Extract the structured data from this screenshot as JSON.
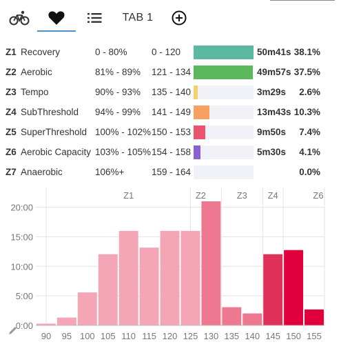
{
  "tabs": [
    {
      "name": "cycling",
      "icon": "bicycle-icon"
    },
    {
      "name": "heart-rate",
      "icon": "heart-icon",
      "active": true
    },
    {
      "name": "list",
      "icon": "list-icon"
    },
    {
      "name": "tab1",
      "label": "TAB 1"
    },
    {
      "name": "add",
      "icon": "add-circle-icon"
    }
  ],
  "zones": [
    {
      "id": "Z1",
      "name": "Recovery",
      "pct": "0 - 80%",
      "bpm": "0 - 120",
      "fraction": 1.0,
      "color": "#5cb8a0",
      "time": "50m41s",
      "share": "38.1%"
    },
    {
      "id": "Z2",
      "name": "Aerobic",
      "pct": "81% - 89%",
      "bpm": "121 - 134",
      "fraction": 0.985,
      "color": "#5cb85c",
      "time": "49m57s",
      "share": "37.5%"
    },
    {
      "id": "Z3",
      "name": "Tempo",
      "pct": "90% - 93%",
      "bpm": "135 - 140",
      "fraction": 0.07,
      "color": "#f6d16b",
      "time": "3m29s",
      "share": "2.6%"
    },
    {
      "id": "Z4",
      "name": "SubThreshold",
      "pct": "94% - 99%",
      "bpm": "141 - 149",
      "fraction": 0.27,
      "color": "#f7a062",
      "time": "13m43s",
      "share": "10.3%"
    },
    {
      "id": "Z5",
      "name": "SuperThreshold",
      "pct": "100% - 102%",
      "bpm": "150 - 153",
      "fraction": 0.195,
      "color": "#e8566e",
      "time": "9m50s",
      "share": "7.4%"
    },
    {
      "id": "Z6",
      "name": "Aerobic Capacity",
      "pct": "103% - 105%",
      "bpm": "154 - 158",
      "fraction": 0.11,
      "color": "#8c5fd2",
      "time": "5m30s",
      "share": "4.1%"
    },
    {
      "id": "Z7",
      "name": "Anaerobic",
      "pct": "106%+",
      "bpm": "159 - 164",
      "fraction": 0.0,
      "color": "#8c5fd2",
      "time": "",
      "share": "0.0%"
    }
  ],
  "chart_data": {
    "type": "bar",
    "x": [
      90,
      95,
      100,
      105,
      110,
      115,
      120,
      125,
      130,
      135,
      140,
      145,
      150,
      155
    ],
    "values_seconds": [
      18,
      80,
      335,
      723,
      960,
      790,
      960,
      960,
      1260,
      185,
      122,
      723,
      765,
      162
    ],
    "bar_colors": [
      "#f4a6b6",
      "#f4a6b6",
      "#f4a6b6",
      "#f4a6b6",
      "#f4a6b6",
      "#f4a6b6",
      "#f4a6b6",
      "#f4a6b6",
      "#ee7890",
      "#ee7890",
      "#ee7890",
      "#e0315a",
      "#e0003c",
      "#e0003c"
    ],
    "y_ticks": [
      "0:00",
      "5:00",
      "10:00",
      "15:00",
      "20:00"
    ],
    "y_tick_seconds": [
      0,
      300,
      600,
      900,
      1200
    ],
    "ylim": [
      0,
      1260
    ],
    "x_ticks": [
      "90",
      "95",
      "100",
      "105",
      "110",
      "115",
      "120",
      "125",
      "130",
      "135",
      "140",
      "145",
      "150",
      "155"
    ],
    "zone_labels": [
      {
        "label": "Z1",
        "bpm": 110
      },
      {
        "label": "Z2",
        "bpm": 127.5
      },
      {
        "label": "Z3",
        "bpm": 137.5
      },
      {
        "label": "Z4",
        "bpm": 145
      },
      {
        "label": "Z6",
        "bpm": 156
      }
    ],
    "zone_boundaries_bpm": [
      90,
      125,
      132.5,
      142.5,
      147.5,
      157.5
    ]
  }
}
